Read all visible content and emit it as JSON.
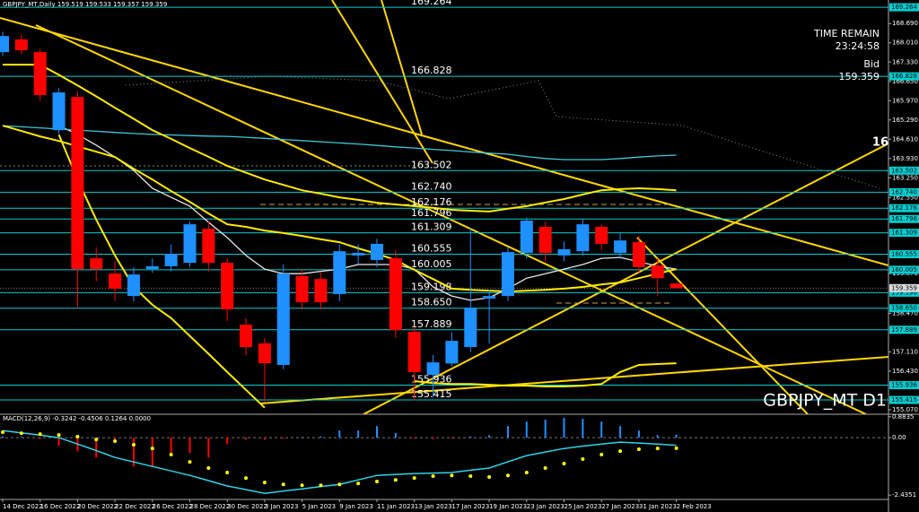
{
  "chart_data": [
    {
      "type": "candlestick",
      "title": "GBPJPY_MT,Daily 159.519 159.533 159.357 159.359",
      "time_remain_label": "TIME REMAIN",
      "time_remain": "23:24:58",
      "bid_label": "Bid",
      "bid": 159.359,
      "annotation": "16",
      "symbol_label": "GBPJPY_MT D1",
      "categories": [
        "14 Dec 2022",
        null,
        "16 Dec 2022",
        null,
        "20 Dec 2022",
        null,
        "22 Dec 2022",
        null,
        "26 Dec 2022",
        null,
        "28 Dec 2022",
        null,
        "30 Dec 2022",
        null,
        "3 Jan 2023",
        null,
        "5 Jan 2023",
        null,
        "9 Jan 2023",
        null,
        "11 Jan 2023",
        null,
        "13 Jan 2023",
        null,
        "17 Jan 2023",
        null,
        "19 Jan 2023",
        null,
        "23 Jan 2023",
        null,
        "25 Jan 2023",
        null,
        "27 Jan 2023",
        null,
        "31 Jan 2023",
        null,
        "2 Feb 2023"
      ],
      "open": [
        167.68,
        168.13,
        167.68,
        164.93,
        166.1,
        160.41,
        159.87,
        159.08,
        160.03,
        160.13,
        160.25,
        161.45,
        160.25,
        158.07,
        157.41,
        156.65,
        159.78,
        159.68,
        159.15,
        160.51,
        160.35,
        160.41,
        157.82,
        156.3,
        156.7,
        157.28,
        158.99,
        159.08,
        160.6,
        161.52,
        160.51,
        160.66,
        161.52,
        160.6,
        160.98,
        160.16,
        159.519
      ],
      "high": [
        168.4,
        168.3,
        167.8,
        166.4,
        166.3,
        160.8,
        160.3,
        160.1,
        160.4,
        160.9,
        161.7,
        161.7,
        160.4,
        158.3,
        157.6,
        160.2,
        160.0,
        159.9,
        160.9,
        160.9,
        161.1,
        160.7,
        158.0,
        157.0,
        157.8,
        161.5,
        159.3,
        160.8,
        161.85,
        161.7,
        161.0,
        161.8,
        161.6,
        161.3,
        161.2,
        160.4,
        159.533
      ],
      "low": [
        167.55,
        167.6,
        165.95,
        164.8,
        158.7,
        159.6,
        158.9,
        158.9,
        159.9,
        159.95,
        160.1,
        159.95,
        158.2,
        157.0,
        155.35,
        156.5,
        158.6,
        158.6,
        158.9,
        160.2,
        160.1,
        157.6,
        155.4,
        155.5,
        156.6,
        157.1,
        157.4,
        158.9,
        160.4,
        160.3,
        160.3,
        160.5,
        160.7,
        160.4,
        159.9,
        159.1,
        159.357
      ],
      "close": [
        168.25,
        167.75,
        166.17,
        166.26,
        160.03,
        160.03,
        159.34,
        159.84,
        160.13,
        160.57,
        161.61,
        160.25,
        158.61,
        157.28,
        156.71,
        159.87,
        158.86,
        158.86,
        160.66,
        160.6,
        160.92,
        157.88,
        156.4,
        156.74,
        157.5,
        158.67,
        159.08,
        160.63,
        161.74,
        160.6,
        160.73,
        161.61,
        160.92,
        161.04,
        160.1,
        159.71,
        159.359
      ],
      "up_color": "#1e90ff",
      "down_color": "#ff0000",
      "series": [
        {
          "color": "#f0e6e6",
          "values": [
            null,
            null,
            null,
            165.09,
            164.78,
            164.4,
            163.98,
            163.51,
            162.88,
            162.56,
            162.25,
            161.68,
            161.14,
            160.51,
            160.03,
            159.87,
            159.87,
            159.95,
            160.03,
            160.19,
            160.19,
            160.19,
            160.03,
            159.4,
            159.08,
            158.93,
            159.02,
            159.34,
            159.71,
            159.87,
            160.03,
            160.19,
            160.41,
            160.44,
            160.29,
            160.13,
            160.03
          ]
        },
        {
          "color": "#3fc8d8",
          "values": [
            165.09,
            165.05,
            165.01,
            164.97,
            164.93,
            164.89,
            164.85,
            164.81,
            164.78,
            164.76,
            164.74,
            164.72,
            164.71,
            164.68,
            164.64,
            164.6,
            164.56,
            164.52,
            164.48,
            164.44,
            164.39,
            164.34,
            164.3,
            164.25,
            164.21,
            164.16,
            164.12,
            164.08,
            164.0,
            163.93,
            163.89,
            163.89,
            163.89,
            163.93,
            163.98,
            164.02,
            164.05
          ]
        },
        {
          "color": "#ffea00",
          "values": [
            167.24,
            167.24,
            167.24,
            166.88,
            166.51,
            166.12,
            165.72,
            165.33,
            164.93,
            164.62,
            164.3,
            163.99,
            163.67,
            163.43,
            163.19,
            163.0,
            162.81,
            162.69,
            162.56,
            162.47,
            162.37,
            162.31,
            162.25,
            162.19,
            162.12,
            162.09,
            162.06,
            162.16,
            162.25,
            162.38,
            162.5,
            162.66,
            162.81,
            162.85,
            162.88,
            162.85,
            162.81
          ]
        },
        {
          "color": "#ffea00",
          "values": [
            165.09,
            164.9,
            164.71,
            164.55,
            164.36,
            164.17,
            163.98,
            163.57,
            163.19,
            162.78,
            162.4,
            161.99,
            161.61,
            161.52,
            161.39,
            161.3,
            161.2,
            161.08,
            160.98,
            160.76,
            160.57,
            160.35,
            160.0,
            159.68,
            159.34,
            159.3,
            159.27,
            159.24,
            159.27,
            159.3,
            159.34,
            159.4,
            159.49,
            159.56,
            159.71,
            159.87,
            160.03
          ]
        },
        {
          "color": "#ffea00",
          "values": [
            null,
            null,
            null,
            164.77,
            163.19,
            161.77,
            160.51,
            159.4,
            158.77,
            158.3,
            157.67,
            157.04,
            156.4,
            155.77,
            155.14,
            null,
            null,
            null,
            null,
            null,
            null,
            null,
            156.08,
            156.01,
            155.98,
            155.98,
            155.95,
            155.92,
            155.92,
            155.89,
            155.89,
            155.92,
            155.98,
            156.4,
            156.65,
            156.68,
            156.71
          ]
        }
      ],
      "levels": [
        169.264,
        166.828,
        163.502,
        {
          "value": 162.74,
          "label": "162.740"
        },
        162.176,
        161.796,
        161.309,
        160.555,
        160.005,
        159.198,
        {
          "value": 158.65,
          "label": "158.650"
        },
        157.889,
        155.936,
        155.415
      ],
      "level_color": "#00ced1",
      "ylim": [
        154.91,
        169.52
      ],
      "yticks": [
        {
          "value": 168.69,
          "label": "168.690"
        },
        {
          "value": 168.01,
          "label": "168.010"
        },
        {
          "value": 167.33,
          "label": "167.330"
        },
        {
          "value": 166.65,
          "label": "166.650"
        },
        {
          "value": 165.97,
          "label": "165.970"
        },
        {
          "value": 165.29,
          "label": "165.290"
        },
        {
          "value": 164.61,
          "label": "164.610"
        },
        {
          "value": 163.93,
          "label": "163.930"
        },
        {
          "value": 163.25,
          "label": "163.250"
        },
        {
          "value": 162.55,
          "label": "162.550"
        },
        {
          "value": 159.87,
          "label": "159.870"
        },
        {
          "value": 158.47,
          "label": "158.470"
        },
        {
          "value": 157.11,
          "label": "157.110"
        },
        {
          "value": 156.43,
          "label": "156.430"
        },
        {
          "value": 155.07,
          "label": "155.070"
        }
      ]
    },
    {
      "type": "macd",
      "title": "MACD(12,26,9) -0.3242 -0.4506 0.1264 0.0000",
      "histogram": [
        0.05,
        0.03,
        -0.05,
        -0.35,
        -0.57,
        -0.84,
        -0.11,
        -1.22,
        -1.22,
        -0.65,
        -0.65,
        -0.84,
        -0.27,
        -0.08,
        -0.08,
        -0.04,
        0.03,
        0.05,
        0.3,
        0.3,
        0.49,
        0.19,
        -0.04,
        -0.06,
        -0.04,
        0.05,
        0.1,
        0.49,
        0.68,
        0.76,
        0.84,
        0.8,
        0.68,
        0.49,
        0.3,
        0.11,
        0.1264
      ],
      "pos_color": "#1e90ff",
      "neg_color": "#ff0000",
      "macd": [
        0.3,
        0.2,
        0.11,
        0.0,
        -0.27,
        -0.55,
        -0.84,
        -1.03,
        -1.22,
        -1.41,
        -1.6,
        -1.82,
        -2.05,
        -2.2,
        -2.36,
        -2.26,
        -2.17,
        -2.07,
        -1.98,
        -1.79,
        -1.6,
        -1.56,
        -1.52,
        -1.5,
        -1.48,
        -1.38,
        -1.29,
        -1.02,
        -0.76,
        -0.61,
        -0.46,
        -0.36,
        -0.27,
        -0.19,
        -0.23,
        -0.27,
        -0.3242
      ],
      "macd_color": "#2fd3e8",
      "signal": [
        0.23,
        0.19,
        0.15,
        0.11,
        0.04,
        -0.08,
        -0.15,
        -0.3,
        -0.46,
        -0.72,
        -1.03,
        -1.29,
        -1.48,
        -1.71,
        -1.9,
        -1.98,
        -2.02,
        -2.02,
        -1.98,
        -1.94,
        -1.86,
        -1.79,
        -1.71,
        -1.63,
        -1.6,
        -1.63,
        -1.67,
        -1.6,
        -1.48,
        -1.29,
        -1.1,
        -0.91,
        -0.72,
        -0.57,
        -0.49,
        -0.46,
        -0.4506
      ],
      "signal_color": "#ffff00",
      "ylim": [
        -3.15,
        0.99
      ],
      "yticks": [
        0.8835,
        {
          "value": 0,
          "label": "0.00"
        },
        -2.4351
      ]
    }
  ]
}
